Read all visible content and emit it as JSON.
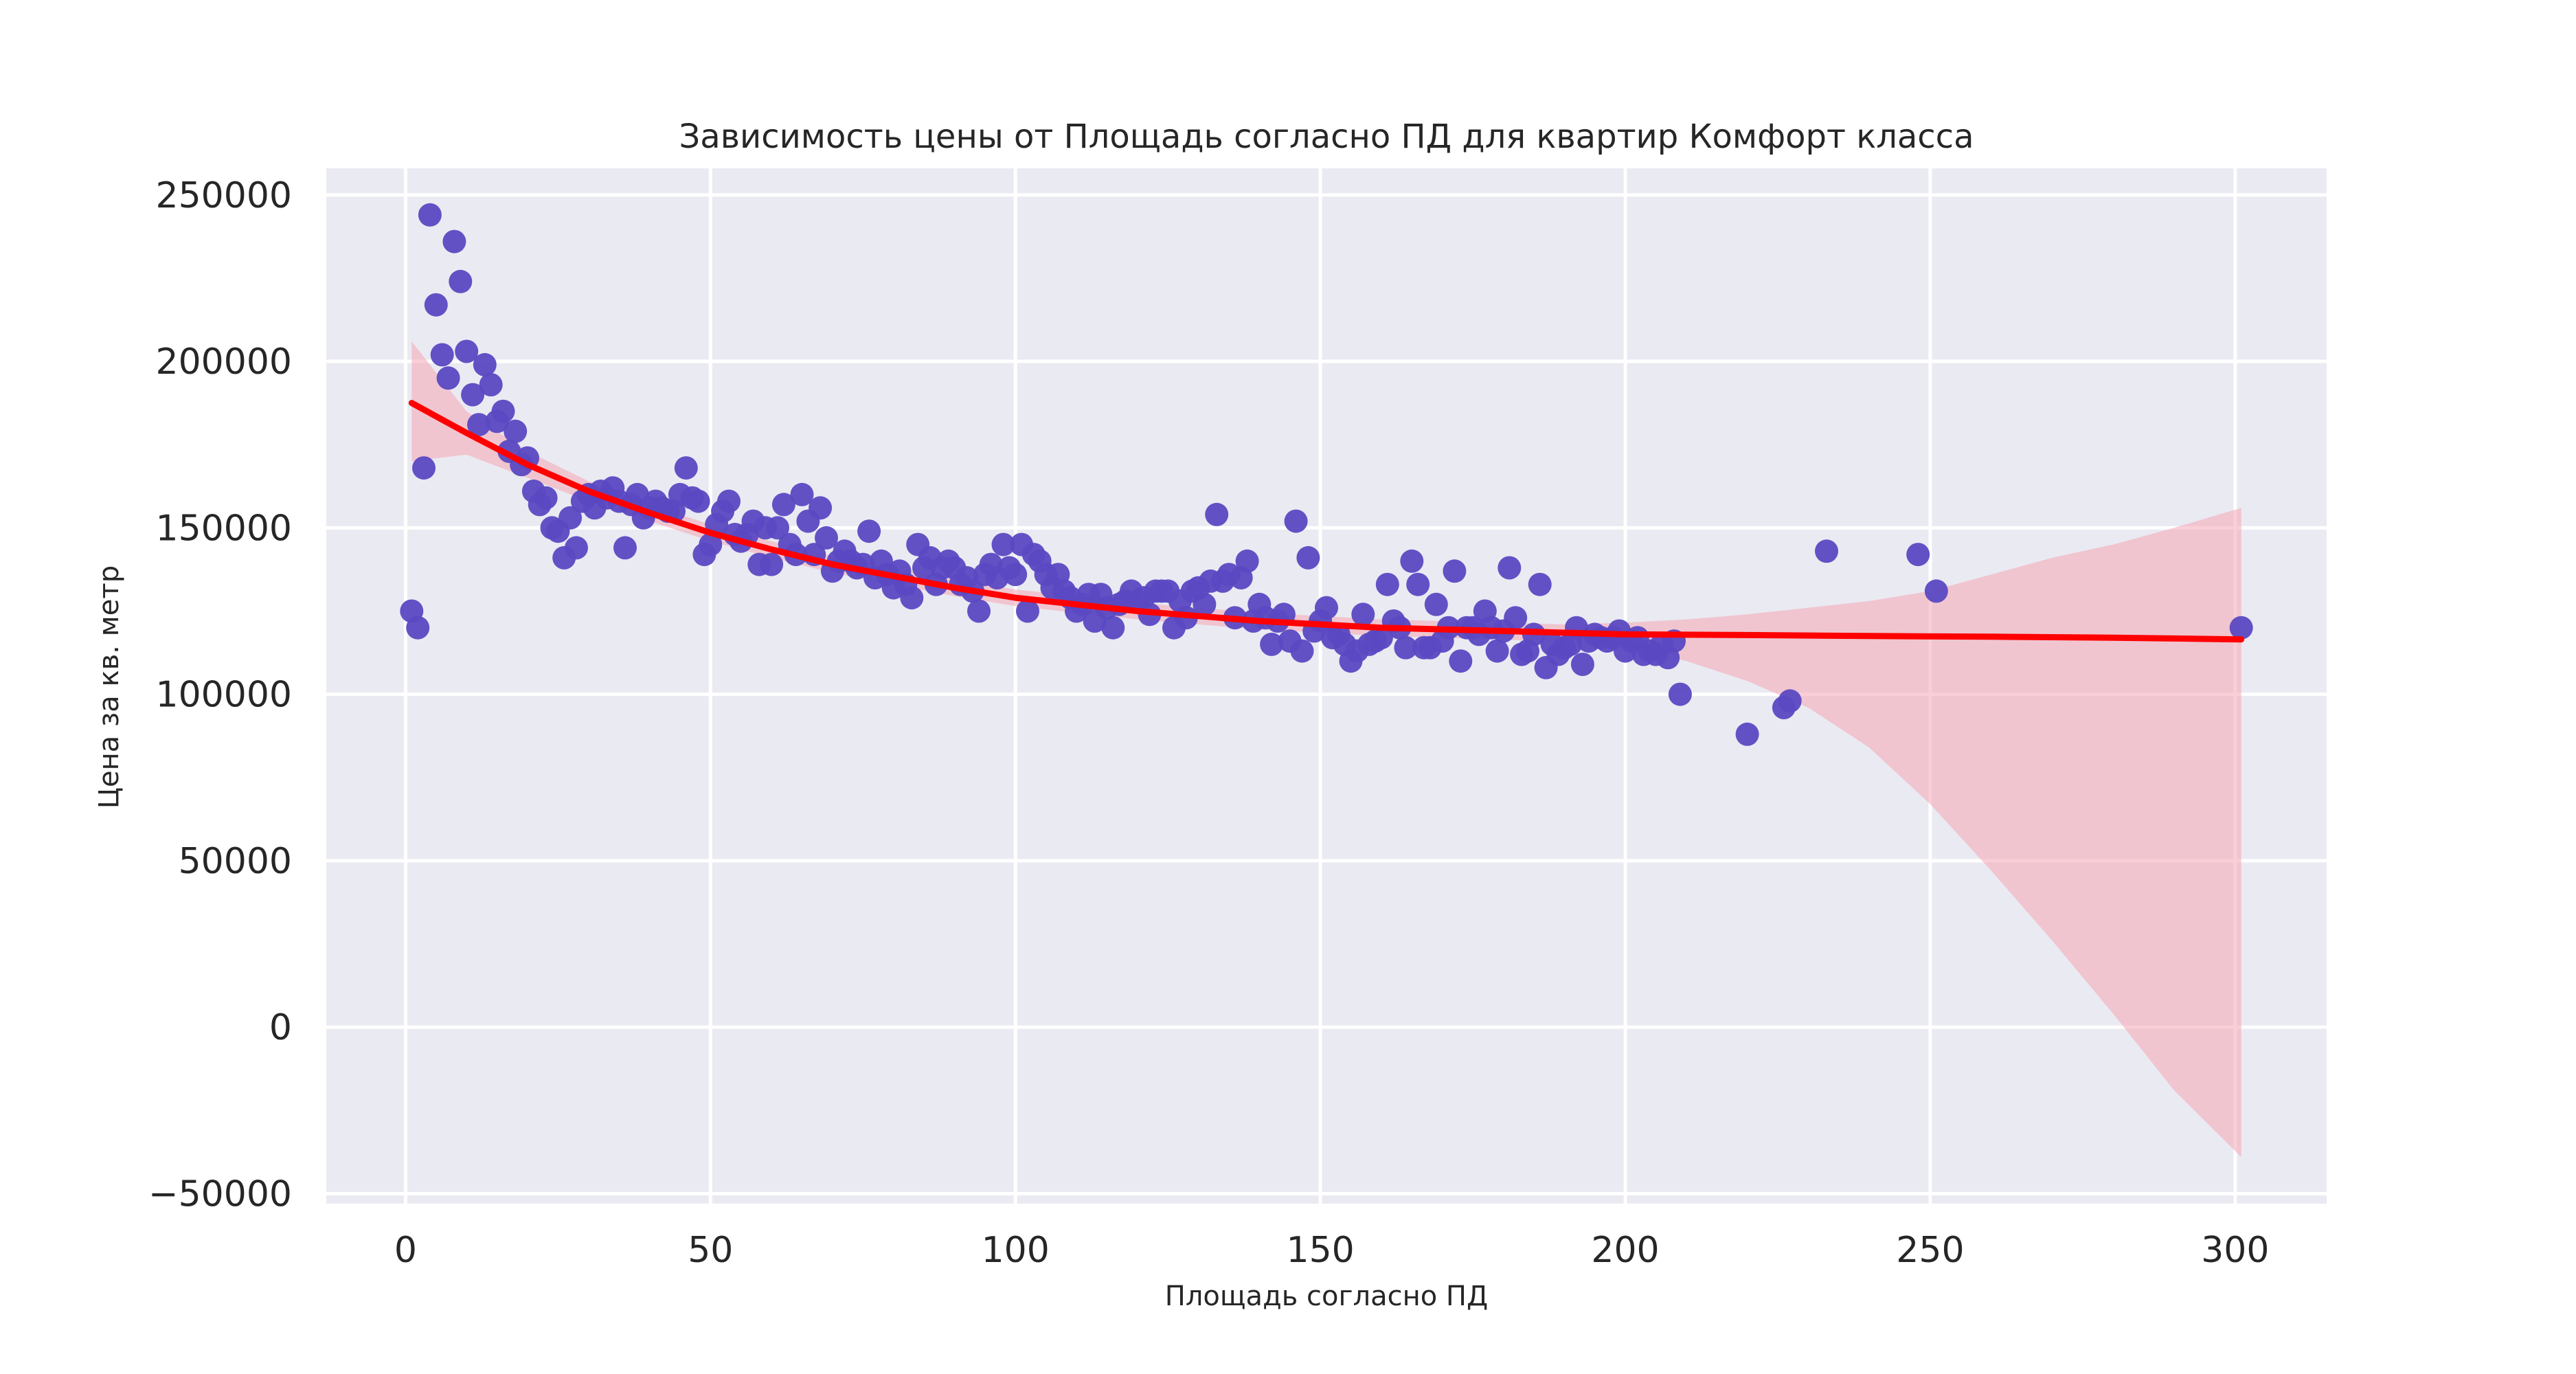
{
  "chart_data": {
    "type": "scatter",
    "title": "Зависимость цены от Площадь согласно ПД для квартир Комфорт класса",
    "xlabel": "Площадь согласно ПД",
    "ylabel": "Цена за кв. метр",
    "xlim": [
      -13,
      315
    ],
    "ylim": [
      -53000,
      258000
    ],
    "xticks": [
      0,
      50,
      100,
      150,
      200,
      250,
      300
    ],
    "yticks": [
      -50000,
      0,
      50000,
      100000,
      150000,
      200000,
      250000
    ],
    "ytick_labels": [
      "−50000",
      "0",
      "50000",
      "100000",
      "150000",
      "200000",
      "250000"
    ],
    "grid": true,
    "colors": {
      "background": "#eaeaf2",
      "points": "#5a49c2",
      "fit_line": "#ff0000",
      "ci_band": "#f4a6b4"
    },
    "series": [
      {
        "kind": "points",
        "points": [
          [
            1,
            125000
          ],
          [
            2,
            120000
          ],
          [
            3,
            168000
          ],
          [
            4,
            244000
          ],
          [
            5,
            217000
          ],
          [
            6,
            202000
          ],
          [
            7,
            195000
          ],
          [
            8,
            236000
          ],
          [
            9,
            224000
          ],
          [
            10,
            203000
          ],
          [
            11,
            190000
          ],
          [
            12,
            181000
          ],
          [
            13,
            199000
          ],
          [
            14,
            193000
          ],
          [
            15,
            182000
          ],
          [
            16,
            185000
          ],
          [
            17,
            173000
          ],
          [
            18,
            179000
          ],
          [
            19,
            169000
          ],
          [
            20,
            171000
          ],
          [
            21,
            161000
          ],
          [
            22,
            157000
          ],
          [
            23,
            159000
          ],
          [
            24,
            150000
          ],
          [
            25,
            149000
          ],
          [
            26,
            141000
          ],
          [
            27,
            153000
          ],
          [
            28,
            144000
          ],
          [
            29,
            158000
          ],
          [
            30,
            160000
          ],
          [
            31,
            156000
          ],
          [
            32,
            161000
          ],
          [
            33,
            159000
          ],
          [
            34,
            162000
          ],
          [
            35,
            158000
          ],
          [
            36,
            144000
          ],
          [
            37,
            157000
          ],
          [
            38,
            160000
          ],
          [
            39,
            153000
          ],
          [
            40,
            156000
          ],
          [
            41,
            158000
          ],
          [
            42,
            156000
          ],
          [
            43,
            155000
          ],
          [
            44,
            155000
          ],
          [
            45,
            160000
          ],
          [
            46,
            168000
          ],
          [
            47,
            159000
          ],
          [
            48,
            158000
          ],
          [
            49,
            142000
          ],
          [
            50,
            145000
          ],
          [
            51,
            151000
          ],
          [
            52,
            155000
          ],
          [
            53,
            158000
          ],
          [
            54,
            148000
          ],
          [
            55,
            146000
          ],
          [
            56,
            148000
          ],
          [
            57,
            152000
          ],
          [
            58,
            139000
          ],
          [
            59,
            150000
          ],
          [
            60,
            139000
          ],
          [
            61,
            150000
          ],
          [
            62,
            157000
          ],
          [
            63,
            145000
          ],
          [
            64,
            142000
          ],
          [
            65,
            160000
          ],
          [
            66,
            152000
          ],
          [
            67,
            142000
          ],
          [
            68,
            156000
          ],
          [
            69,
            147000
          ],
          [
            70,
            137000
          ],
          [
            71,
            140000
          ],
          [
            72,
            143000
          ],
          [
            73,
            140000
          ],
          [
            74,
            138000
          ],
          [
            75,
            139000
          ],
          [
            76,
            149000
          ],
          [
            77,
            135000
          ],
          [
            78,
            140000
          ],
          [
            79,
            136000
          ],
          [
            80,
            132000
          ],
          [
            81,
            137000
          ],
          [
            82,
            133000
          ],
          [
            83,
            129000
          ],
          [
            84,
            145000
          ],
          [
            85,
            138000
          ],
          [
            86,
            141000
          ],
          [
            87,
            133000
          ],
          [
            88,
            138000
          ],
          [
            89,
            140000
          ],
          [
            90,
            138000
          ],
          [
            91,
            133000
          ],
          [
            92,
            135000
          ],
          [
            93,
            131000
          ],
          [
            94,
            125000
          ],
          [
            95,
            136000
          ],
          [
            96,
            139000
          ],
          [
            97,
            135000
          ],
          [
            98,
            145000
          ],
          [
            99,
            138000
          ],
          [
            100,
            136000
          ],
          [
            101,
            145000
          ],
          [
            102,
            125000
          ],
          [
            103,
            142000
          ],
          [
            104,
            140000
          ],
          [
            105,
            136000
          ],
          [
            106,
            132000
          ],
          [
            107,
            136000
          ],
          [
            108,
            131000
          ],
          [
            109,
            129000
          ],
          [
            110,
            125000
          ],
          [
            111,
            127000
          ],
          [
            112,
            130000
          ],
          [
            113,
            122000
          ],
          [
            114,
            130000
          ],
          [
            115,
            126000
          ],
          [
            116,
            120000
          ],
          [
            117,
            127000
          ],
          [
            118,
            128000
          ],
          [
            119,
            131000
          ],
          [
            120,
            128000
          ],
          [
            121,
            129000
          ],
          [
            122,
            124000
          ],
          [
            123,
            131000
          ],
          [
            124,
            131000
          ],
          [
            125,
            131000
          ],
          [
            126,
            120000
          ],
          [
            127,
            128000
          ],
          [
            128,
            123000
          ],
          [
            129,
            131000
          ],
          [
            130,
            132000
          ],
          [
            131,
            127000
          ],
          [
            132,
            134000
          ],
          [
            133,
            154000
          ],
          [
            134,
            134000
          ],
          [
            135,
            136000
          ],
          [
            136,
            123000
          ],
          [
            137,
            135000
          ],
          [
            138,
            140000
          ],
          [
            139,
            122000
          ],
          [
            140,
            127000
          ],
          [
            141,
            123000
          ],
          [
            142,
            115000
          ],
          [
            143,
            122000
          ],
          [
            144,
            124000
          ],
          [
            145,
            116000
          ],
          [
            146,
            152000
          ],
          [
            147,
            113000
          ],
          [
            148,
            141000
          ],
          [
            149,
            119000
          ],
          [
            150,
            122000
          ],
          [
            151,
            126000
          ],
          [
            152,
            117000
          ],
          [
            153,
            118000
          ],
          [
            154,
            115000
          ],
          [
            155,
            110000
          ],
          [
            156,
            113000
          ],
          [
            157,
            124000
          ],
          [
            158,
            115000
          ],
          [
            159,
            116000
          ],
          [
            160,
            117000
          ],
          [
            161,
            133000
          ],
          [
            162,
            122000
          ],
          [
            163,
            120000
          ],
          [
            164,
            114000
          ],
          [
            165,
            140000
          ],
          [
            166,
            133000
          ],
          [
            167,
            114000
          ],
          [
            168,
            114000
          ],
          [
            169,
            127000
          ],
          [
            170,
            116000
          ],
          [
            171,
            120000
          ],
          [
            172,
            137000
          ],
          [
            173,
            110000
          ],
          [
            174,
            120000
          ],
          [
            175,
            120000
          ],
          [
            176,
            118000
          ],
          [
            177,
            125000
          ],
          [
            178,
            120000
          ],
          [
            179,
            113000
          ],
          [
            180,
            119000
          ],
          [
            181,
            138000
          ],
          [
            182,
            123000
          ],
          [
            183,
            112000
          ],
          [
            184,
            113000
          ],
          [
            185,
            118000
          ],
          [
            186,
            133000
          ],
          [
            187,
            108000
          ],
          [
            188,
            115000
          ],
          [
            189,
            112000
          ],
          [
            190,
            114000
          ],
          [
            191,
            115000
          ],
          [
            192,
            120000
          ],
          [
            193,
            109000
          ],
          [
            194,
            116000
          ],
          [
            195,
            118000
          ],
          [
            196,
            117000
          ],
          [
            197,
            116000
          ],
          [
            198,
            117000
          ],
          [
            199,
            119000
          ],
          [
            200,
            113000
          ],
          [
            201,
            116000
          ],
          [
            202,
            117000
          ],
          [
            203,
            112000
          ],
          [
            204,
            113000
          ],
          [
            205,
            112000
          ],
          [
            206,
            115000
          ],
          [
            207,
            111000
          ],
          [
            208,
            116000
          ],
          [
            209,
            100000
          ],
          [
            220,
            88000
          ],
          [
            226,
            96000
          ],
          [
            227,
            98000
          ],
          [
            233,
            143000
          ],
          [
            248,
            142000
          ],
          [
            251,
            131000
          ],
          [
            301,
            120000
          ]
        ]
      },
      {
        "kind": "regression-line",
        "points": [
          [
            1,
            187500
          ],
          [
            10,
            178500
          ],
          [
            20,
            169000
          ],
          [
            30,
            161000
          ],
          [
            40,
            154500
          ],
          [
            50,
            148500
          ],
          [
            60,
            143500
          ],
          [
            70,
            139000
          ],
          [
            80,
            135500
          ],
          [
            90,
            132000
          ],
          [
            100,
            129000
          ],
          [
            110,
            127000
          ],
          [
            120,
            125000
          ],
          [
            130,
            123500
          ],
          [
            140,
            122000
          ],
          [
            150,
            121000
          ],
          [
            160,
            120000
          ],
          [
            170,
            119500
          ],
          [
            180,
            119000
          ],
          [
            190,
            118500
          ],
          [
            200,
            118000
          ],
          [
            220,
            117800
          ],
          [
            240,
            117500
          ],
          [
            260,
            117300
          ],
          [
            280,
            117000
          ],
          [
            301,
            116500
          ]
        ]
      },
      {
        "kind": "confidence-band",
        "upper": [
          [
            1,
            206000
          ],
          [
            10,
            185000
          ],
          [
            20,
            173000
          ],
          [
            30,
            164000
          ],
          [
            40,
            157000
          ],
          [
            50,
            151000
          ],
          [
            60,
            146000
          ],
          [
            70,
            141500
          ],
          [
            80,
            138000
          ],
          [
            90,
            134500
          ],
          [
            100,
            131500
          ],
          [
            110,
            129500
          ],
          [
            120,
            127500
          ],
          [
            130,
            126000
          ],
          [
            140,
            124500
          ],
          [
            150,
            123500
          ],
          [
            160,
            122500
          ],
          [
            170,
            122000
          ],
          [
            180,
            121500
          ],
          [
            190,
            121000
          ],
          [
            200,
            121500
          ],
          [
            210,
            122500
          ],
          [
            220,
            124000
          ],
          [
            230,
            126000
          ],
          [
            240,
            128000
          ],
          [
            250,
            131000
          ],
          [
            260,
            136000
          ],
          [
            270,
            141000
          ],
          [
            280,
            145000
          ],
          [
            290,
            150000
          ],
          [
            301,
            156000
          ]
        ],
        "lower": [
          [
            1,
            170000
          ],
          [
            10,
            172000
          ],
          [
            20,
            165000
          ],
          [
            30,
            158000
          ],
          [
            40,
            152000
          ],
          [
            50,
            146000
          ],
          [
            60,
            141000
          ],
          [
            70,
            136500
          ],
          [
            80,
            133000
          ],
          [
            90,
            129500
          ],
          [
            100,
            126500
          ],
          [
            110,
            124500
          ],
          [
            120,
            122500
          ],
          [
            130,
            121000
          ],
          [
            140,
            119500
          ],
          [
            150,
            118500
          ],
          [
            160,
            117500
          ],
          [
            170,
            117000
          ],
          [
            180,
            116500
          ],
          [
            190,
            115500
          ],
          [
            200,
            114000
          ],
          [
            210,
            110000
          ],
          [
            220,
            104000
          ],
          [
            230,
            96000
          ],
          [
            240,
            84000
          ],
          [
            250,
            67000
          ],
          [
            260,
            47000
          ],
          [
            270,
            26000
          ],
          [
            280,
            4000
          ],
          [
            290,
            -19000
          ],
          [
            301,
            -39000
          ]
        ]
      }
    ]
  }
}
